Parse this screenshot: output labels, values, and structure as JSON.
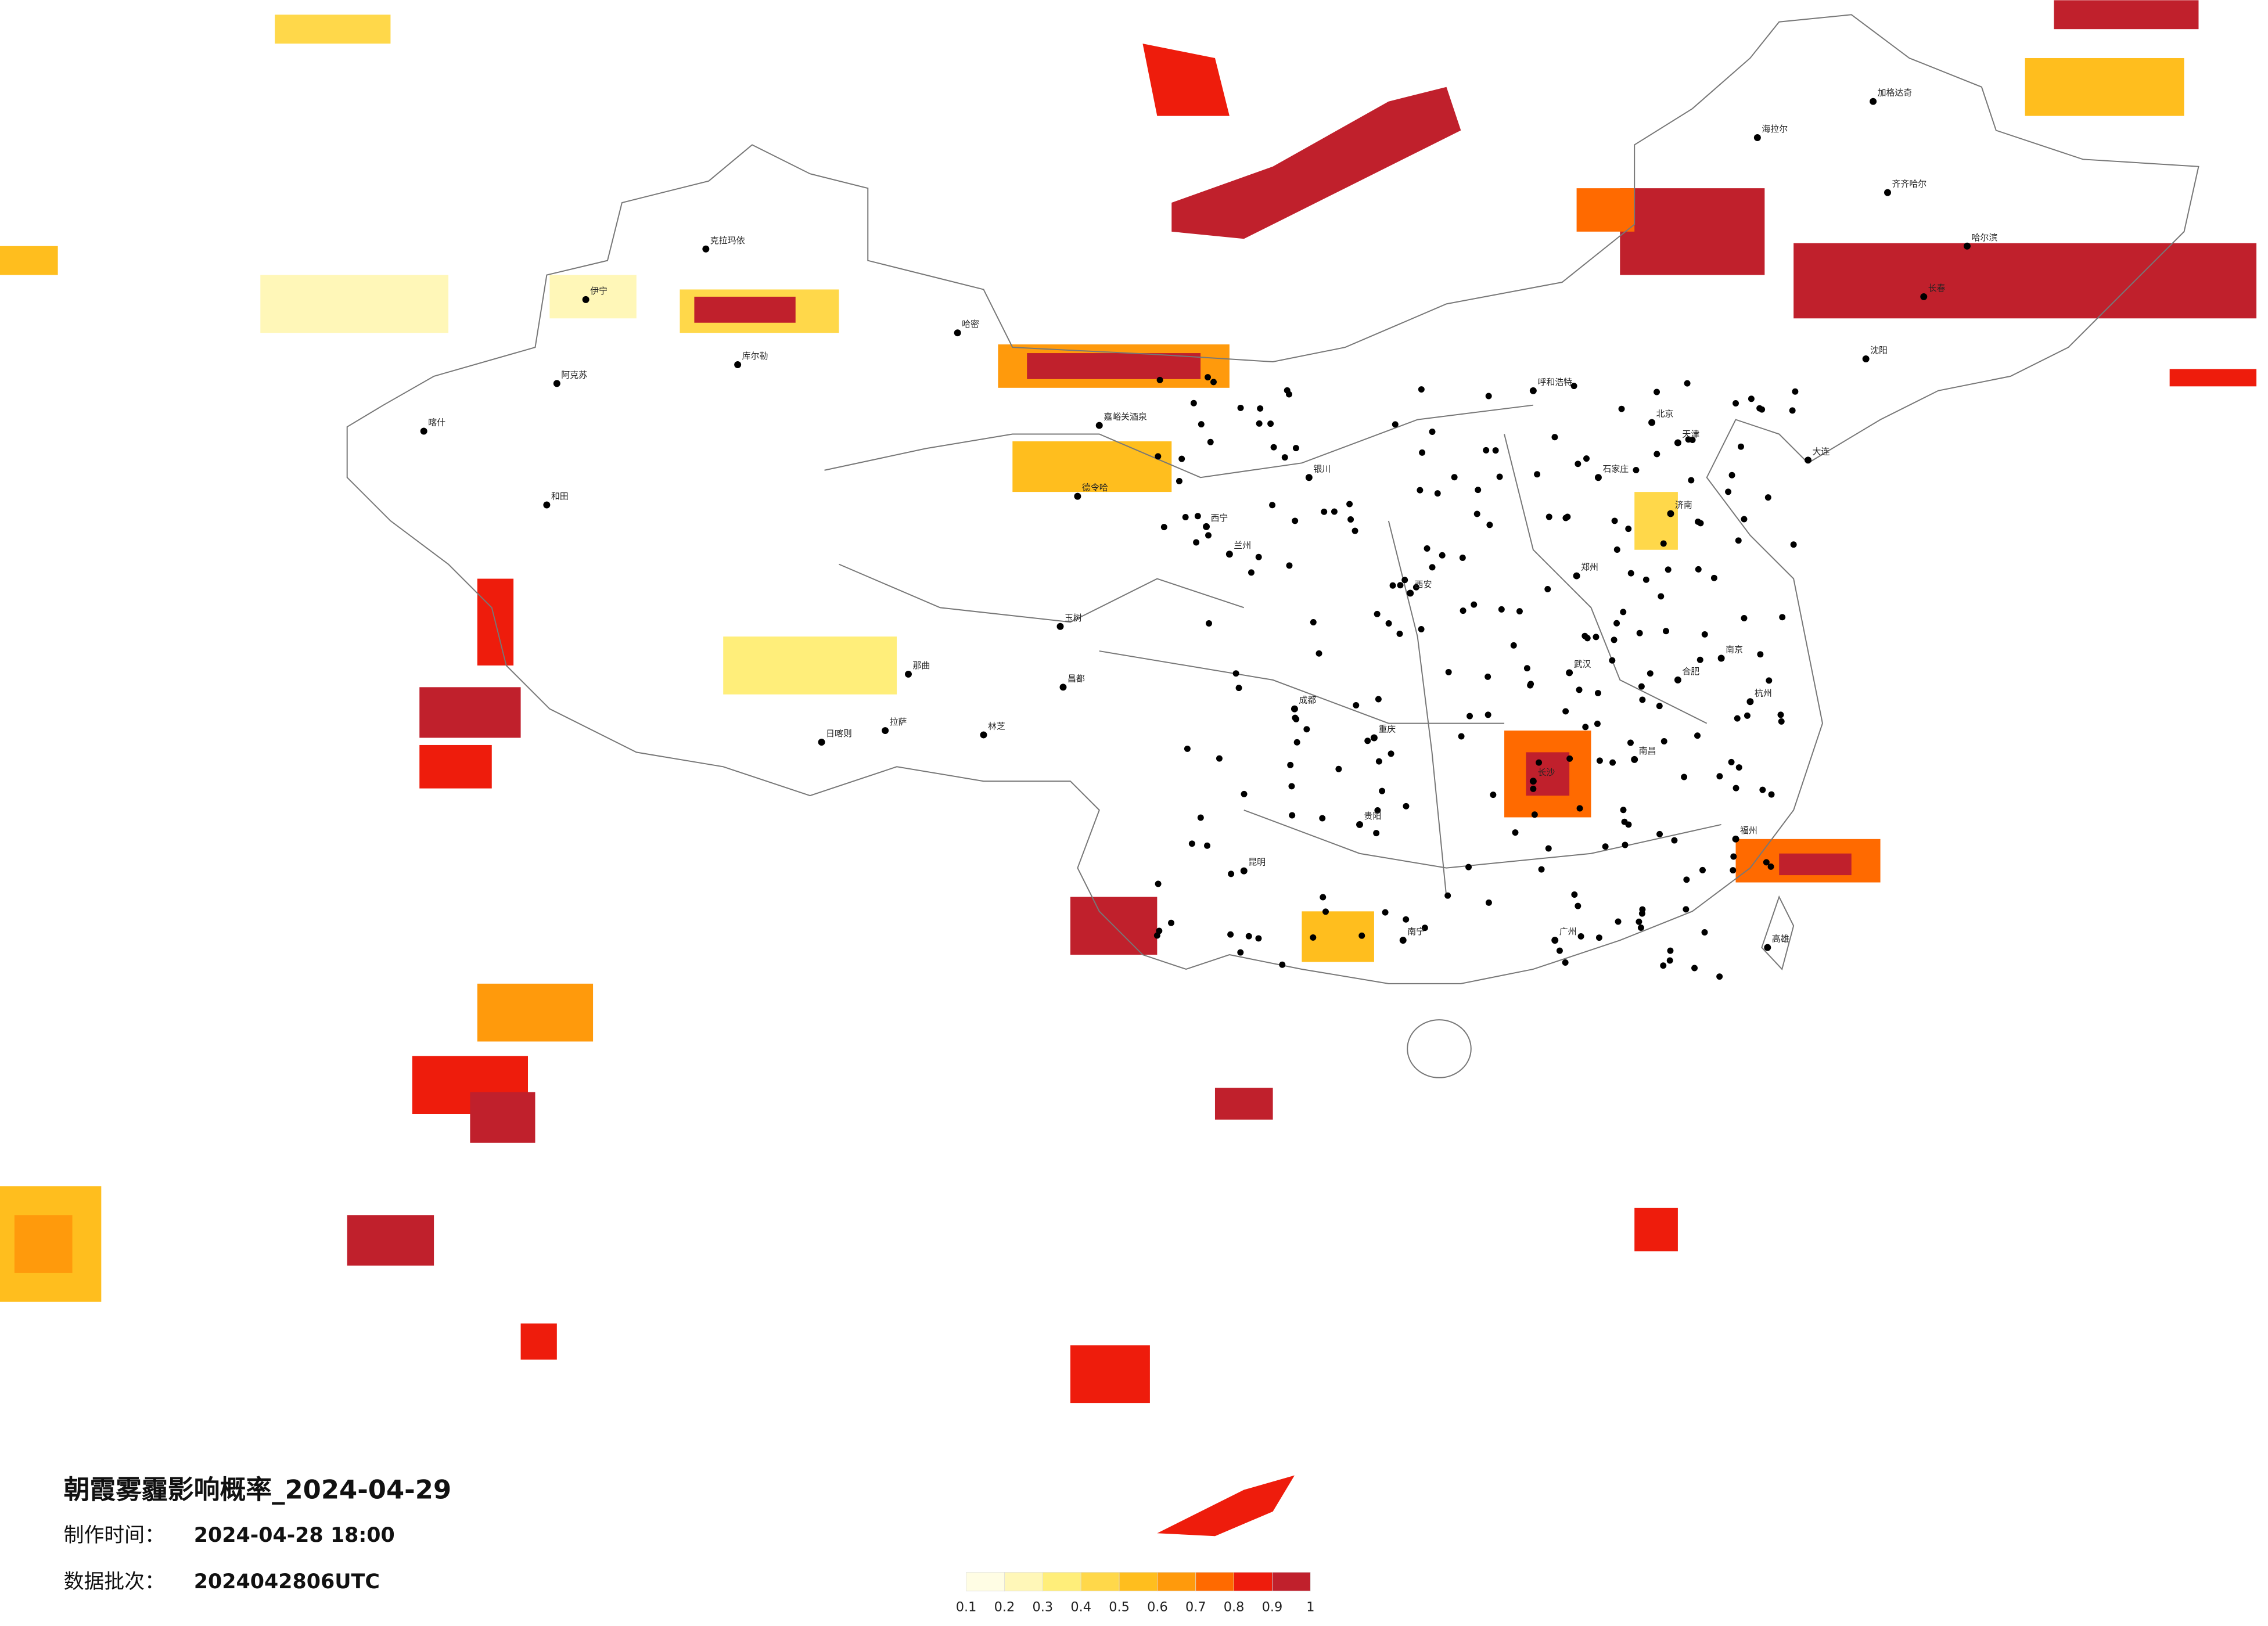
{
  "header": {
    "title": "朝霞雾霾影响概率_2024-04-29",
    "issue_label": "制作时间：",
    "issue_time": "2024-04-28 18:00",
    "batch_label": "数据批次：",
    "batch": "2024042806UTC"
  },
  "legend": {
    "ticks": [
      0.1,
      0.2,
      0.3,
      0.4,
      0.5,
      0.6,
      0.7,
      0.8,
      0.9,
      1
    ],
    "colors": [
      "#fffde4",
      "#fff7b8",
      "#ffee7a",
      "#ffd84a",
      "#ffbe1e",
      "#ff9a0c",
      "#ff6a00",
      "#ee1c0c",
      "#c0202c"
    ]
  },
  "cities": [
    "克拉玛依",
    "伊宁",
    "库尔勒",
    "阿克苏",
    "和田",
    "喀什",
    "哈密",
    "嘉峪关酒泉",
    "德令哈",
    "拉萨",
    "日喀则",
    "林芝",
    "那曲",
    "昌都",
    "玉树",
    "西宁",
    "兰州",
    "银川",
    "呼和浩特",
    "北京",
    "天津",
    "石家庄",
    "济南",
    "郑州",
    "西安",
    "成都",
    "重庆",
    "贵阳",
    "昆明",
    "南宁",
    "广州",
    "长沙",
    "武汉",
    "南京",
    "杭州",
    "福州",
    "南昌",
    "合肥",
    "哈尔滨",
    "长春",
    "沈阳",
    "大连",
    "齐齐哈尔",
    "海拉尔",
    "加格达奇",
    "高雄"
  ]
}
